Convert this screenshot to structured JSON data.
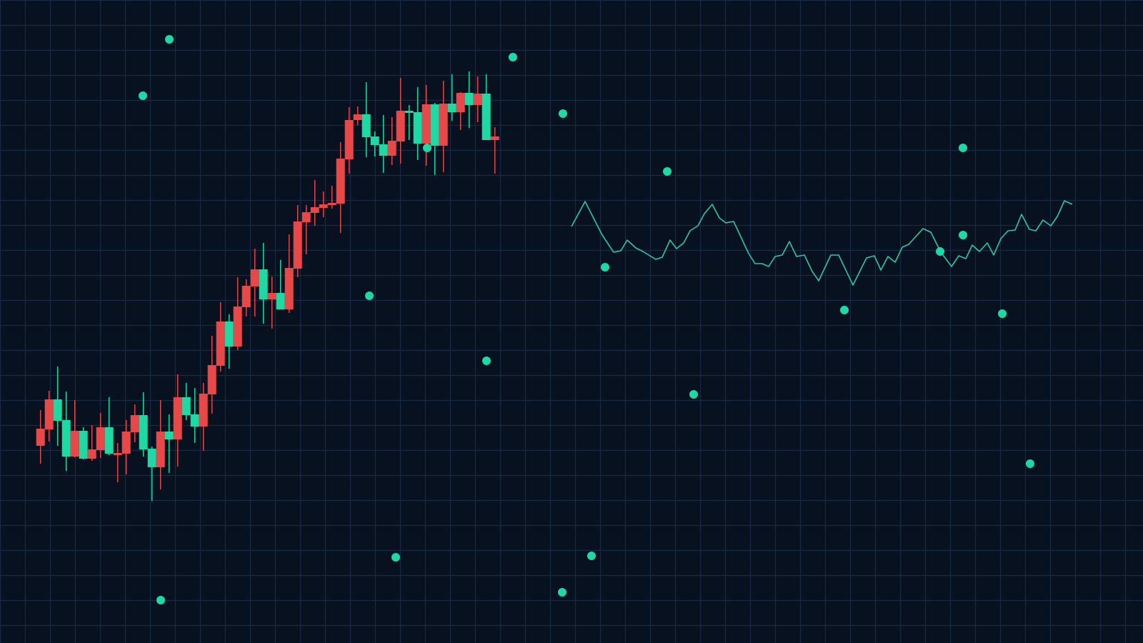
{
  "chart_data": {
    "type": "candlestick",
    "title": "",
    "xlabel": "",
    "ylabel": "",
    "xlim": [
      0,
      160
    ],
    "ylim": [
      0,
      90
    ],
    "grid": true,
    "legend": "none",
    "colors": {
      "background": "#08111f",
      "grid": "#1a2947",
      "up": "#e84848",
      "down": "#1fd9a5",
      "line": "#2cc99f",
      "dots": "#1ed9a6"
    },
    "candles": {
      "x_start": 5.67,
      "x_step": 1.2,
      "ohlc": [
        [
          27.6,
          32.6,
          25.1,
          30.0
        ],
        [
          29.9,
          35.3,
          28.2,
          34.1
        ],
        [
          34.1,
          38.7,
          27.6,
          31.1
        ],
        [
          31.2,
          35.2,
          24.1,
          26.1
        ],
        [
          26.1,
          34.0,
          26.0,
          29.7
        ],
        [
          29.7,
          30.2,
          25.7,
          25.8
        ],
        [
          25.8,
          30.5,
          25.5,
          27.1
        ],
        [
          27.0,
          32.2,
          25.9,
          30.2
        ],
        [
          30.2,
          34.4,
          26.3,
          26.5
        ],
        [
          26.3,
          28.0,
          22.5,
          26.6
        ],
        [
          26.5,
          31.2,
          23.6,
          29.6
        ],
        [
          29.5,
          33.4,
          28.1,
          31.9
        ],
        [
          31.9,
          35.1,
          26.1,
          27.1
        ],
        [
          27.2,
          27.5,
          19.9,
          24.6
        ],
        [
          24.6,
          34.0,
          21.5,
          29.6
        ],
        [
          29.6,
          32.0,
          23.8,
          28.5
        ],
        [
          28.5,
          37.6,
          24.7,
          34.4
        ],
        [
          34.4,
          36.4,
          31.2,
          31.9
        ],
        [
          32.0,
          35.7,
          28.0,
          30.3
        ],
        [
          30.3,
          36.4,
          26.9,
          34.9
        ],
        [
          34.8,
          43.0,
          32.1,
          38.9
        ],
        [
          38.8,
          47.7,
          38.0,
          45.0
        ],
        [
          45.0,
          46.0,
          38.4,
          41.5
        ],
        [
          41.5,
          51.2,
          41.0,
          47.1
        ],
        [
          47.0,
          50.9,
          45.7,
          50.0
        ],
        [
          49.9,
          55.2,
          45.7,
          52.3
        ],
        [
          52.3,
          56.0,
          44.7,
          48.1
        ],
        [
          48.1,
          51.3,
          44.0,
          49.0
        ],
        [
          49.0,
          53.6,
          46.7,
          46.7
        ],
        [
          46.7,
          57.2,
          46.2,
          52.5
        ],
        [
          52.4,
          61.3,
          51.2,
          59.0
        ],
        [
          58.9,
          61.3,
          54.4,
          60.3
        ],
        [
          60.2,
          64.8,
          58.4,
          61.0
        ],
        [
          60.9,
          63.2,
          59.6,
          61.4
        ],
        [
          61.3,
          64.0,
          60.8,
          61.6
        ],
        [
          61.5,
          70.1,
          57.4,
          67.8
        ],
        [
          67.7,
          75.0,
          65.7,
          73.2
        ],
        [
          73.2,
          75.1,
          72.5,
          74.0
        ],
        [
          74.0,
          78.5,
          68.0,
          70.8
        ],
        [
          70.9,
          71.6,
          68.1,
          69.7
        ],
        [
          69.8,
          73.9,
          65.8,
          68.2
        ],
        [
          68.2,
          73.6,
          66.9,
          70.3
        ],
        [
          70.2,
          79.1,
          67.1,
          74.5
        ],
        [
          74.5,
          75.3,
          70.4,
          74.2
        ],
        [
          74.3,
          77.8,
          67.6,
          69.9
        ],
        [
          69.9,
          78.1,
          66.8,
          75.4
        ],
        [
          75.4,
          75.6,
          65.5,
          69.6
        ],
        [
          69.6,
          78.7,
          65.9,
          75.5
        ],
        [
          75.5,
          79.6,
          73.1,
          74.3
        ],
        [
          74.3,
          77.1,
          71.8,
          77.0
        ],
        [
          77.0,
          80.0,
          72.1,
          75.3
        ],
        [
          75.3,
          79.3,
          72.9,
          76.9
        ],
        [
          76.9,
          79.6,
          70.4,
          70.4
        ],
        [
          70.4,
          72.2,
          65.7,
          70.9
        ]
      ]
    },
    "line_series": [
      [
        80.0,
        58.3
      ],
      [
        81.9,
        61.8
      ],
      [
        84.3,
        57.1
      ],
      [
        85.9,
        54.7
      ],
      [
        86.9,
        54.9
      ],
      [
        87.8,
        56.4
      ],
      [
        89.0,
        55.3
      ],
      [
        90.0,
        54.8
      ],
      [
        91.8,
        53.7
      ],
      [
        92.7,
        54.0
      ],
      [
        93.8,
        56.4
      ],
      [
        94.7,
        55.2
      ],
      [
        95.7,
        56.0
      ],
      [
        96.6,
        57.7
      ],
      [
        97.7,
        58.4
      ],
      [
        98.6,
        60.1
      ],
      [
        99.7,
        61.4
      ],
      [
        100.7,
        59.5
      ],
      [
        101.6,
        58.8
      ],
      [
        102.7,
        59.0
      ],
      [
        104.8,
        54.5
      ],
      [
        105.7,
        53.1
      ],
      [
        106.7,
        53.1
      ],
      [
        107.6,
        52.7
      ],
      [
        108.5,
        54.1
      ],
      [
        109.5,
        54.3
      ],
      [
        110.5,
        56.2
      ],
      [
        111.5,
        54.1
      ],
      [
        112.6,
        54.3
      ],
      [
        113.7,
        52.0
      ],
      [
        114.6,
        50.7
      ],
      [
        116.3,
        54.3
      ],
      [
        117.4,
        54.3
      ],
      [
        119.4,
        50.1
      ],
      [
        121.3,
        53.9
      ],
      [
        122.4,
        54.2
      ],
      [
        123.3,
        52.2
      ],
      [
        124.3,
        54.1
      ],
      [
        125.3,
        53.3
      ],
      [
        126.3,
        55.4
      ],
      [
        127.2,
        55.8
      ],
      [
        129.2,
        58.0
      ],
      [
        130.3,
        57.5
      ],
      [
        131.7,
        54.7
      ],
      [
        133.2,
        52.7
      ],
      [
        134.2,
        54.2
      ],
      [
        135.2,
        53.8
      ],
      [
        136.1,
        55.7
      ],
      [
        137.1,
        54.8
      ],
      [
        138.2,
        56.0
      ],
      [
        139.1,
        54.3
      ],
      [
        140.1,
        56.6
      ],
      [
        141.1,
        57.7
      ],
      [
        142.1,
        57.8
      ],
      [
        143.0,
        60.0
      ],
      [
        144.1,
        57.9
      ],
      [
        145.0,
        57.7
      ],
      [
        146.0,
        59.2
      ],
      [
        147.1,
        58.4
      ],
      [
        148.0,
        59.7
      ],
      [
        149.0,
        61.9
      ],
      [
        150.1,
        61.4
      ]
    ],
    "scatter_points": [
      [
        23.7,
        84.5
      ],
      [
        20.0,
        76.6
      ],
      [
        71.8,
        82.0
      ],
      [
        78.8,
        74.1
      ],
      [
        59.8,
        69.3
      ],
      [
        93.4,
        66.0
      ],
      [
        134.8,
        69.3
      ],
      [
        134.8,
        57.1
      ],
      [
        131.6,
        54.8
      ],
      [
        84.7,
        52.6
      ],
      [
        51.7,
        48.6
      ],
      [
        118.2,
        46.6
      ],
      [
        140.3,
        46.1
      ],
      [
        68.1,
        39.5
      ],
      [
        97.1,
        34.8
      ],
      [
        144.2,
        25.1
      ],
      [
        55.4,
        12.0
      ],
      [
        82.8,
        12.2
      ],
      [
        78.7,
        7.1
      ],
      [
        22.5,
        6.0
      ]
    ]
  }
}
